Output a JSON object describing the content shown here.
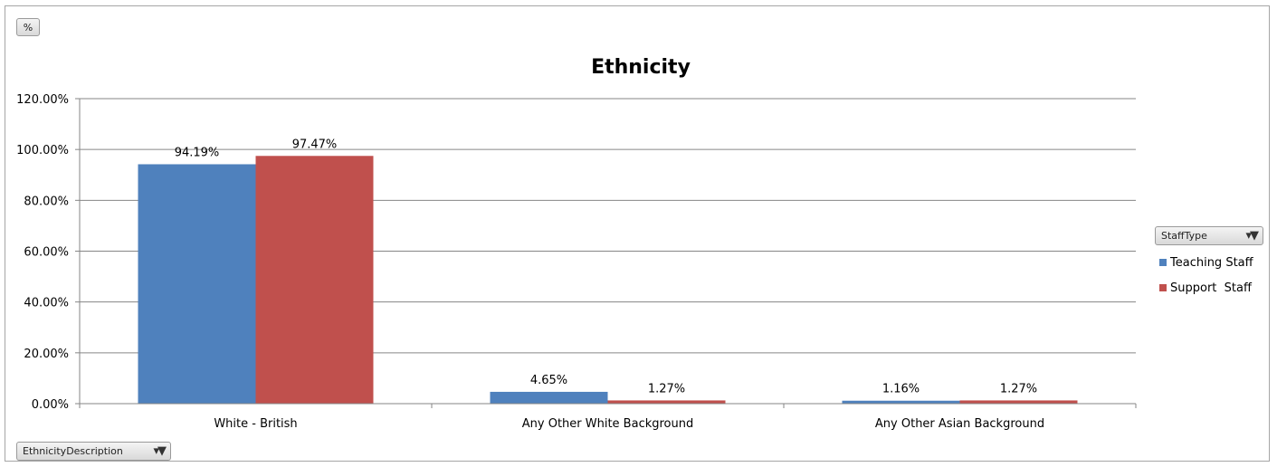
{
  "pivot_buttons": {
    "values_label": "%",
    "axis_label": "EthnicityDescription",
    "legend_label": "StaffType",
    "filter_icon": "filter-dropdown-icon"
  },
  "colors": {
    "Teaching Staff": "#4f81bd",
    "Support  Staff": "#c0504d",
    "gridline": "#868686",
    "axis": "#868686"
  },
  "chart_data": {
    "type": "bar",
    "title": "Ethnicity",
    "xlabel": "",
    "ylabel": "",
    "categories": [
      "White - British",
      "Any Other White Background",
      "Any Other Asian Background"
    ],
    "series": [
      {
        "name": "Teaching Staff",
        "values": [
          94.19,
          4.65,
          1.16
        ],
        "labels": [
          "94.19%",
          "4.65%",
          "1.16%"
        ]
      },
      {
        "name": "Support  Staff",
        "values": [
          97.47,
          1.27,
          1.27
        ],
        "labels": [
          "97.47%",
          "1.27%",
          "1.27%"
        ]
      }
    ],
    "ylim": [
      0,
      120
    ],
    "yticks": [
      0,
      20,
      40,
      60,
      80,
      100,
      120
    ],
    "ytick_labels": [
      "0.00%",
      "20.00%",
      "40.00%",
      "60.00%",
      "80.00%",
      "100.00%",
      "120.00%"
    ],
    "grid": true,
    "legend_position": "right"
  }
}
